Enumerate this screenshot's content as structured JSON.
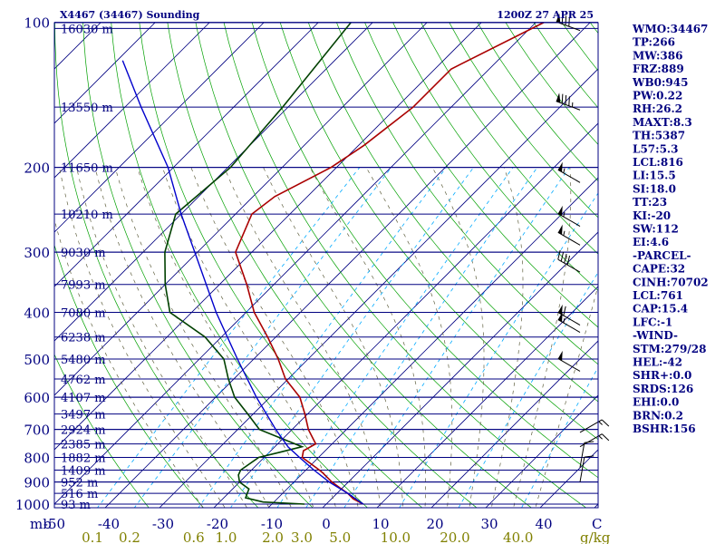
{
  "header": {
    "station": "X4467 (34467) Sounding",
    "time": "1200Z 27 APR 25"
  },
  "colors": {
    "frame": "#000080",
    "isobar": "#000080",
    "isotherm": "#000080",
    "dry_adiabat": "#00a000",
    "moist_adiabat": "#00a000",
    "mixing_ratio": "#00aaff",
    "temperature": "#aa0000",
    "dewpoint": "#004000",
    "parcel": "#0000cc",
    "wind": "#000000",
    "sidebar_text": "#000080",
    "axis_text": "#000080",
    "mixing_text": "#808000"
  },
  "indices": [
    "WMO:34467",
    "TP:266",
    "MW:386",
    "FRZ:889",
    "WB0:945",
    "PW:0.22",
    "RH:26.2",
    "MAXT:8.3",
    "TH:5387",
    "L57:5.3",
    "LCL:816",
    "LI:15.5",
    "SI:18.0",
    "TT:23",
    "KI:-20",
    "SW:112",
    "EI:4.6",
    "-PARCEL-",
    "CAPE:32",
    "CINH:70702",
    "LCL:761",
    "CAP:15.4",
    "LFC:-1",
    "-WIND-",
    "STM:279/28",
    "HEL:-42",
    "SHR+:0.0",
    "SRDS:126",
    "EHI:0.0",
    "BRN:0.2",
    "BSHR:156"
  ],
  "chart_data": {
    "type": "line",
    "diagram": "skew-T log-P",
    "pressure_ticks": [
      100,
      200,
      300,
      400,
      500,
      600,
      700,
      800,
      900,
      1000
    ],
    "pressure_tick_labels": [
      "100",
      "200",
      "300",
      "400",
      "500",
      "600",
      "700",
      "800",
      "900",
      "1000"
    ],
    "pressure_axis_unit": "mb",
    "temperature_ticks": [
      -50,
      -40,
      -30,
      -20,
      -10,
      0,
      10,
      20,
      30,
      40
    ],
    "temperature_tick_labels": [
      "-50",
      "-40",
      "-30",
      "-20",
      "-10",
      "0",
      "10",
      "20",
      "30",
      "40"
    ],
    "temperature_axis_unit": "C",
    "mixing_ratio_ticks": [
      0.1,
      0.2,
      0.6,
      1.0,
      2.0,
      3.0,
      5.0,
      10.0,
      20.0,
      40.0
    ],
    "mixing_ratio_labels": [
      "0.1",
      "0.2",
      "0.6",
      "1.0",
      "2.0",
      "3.0",
      "5.0",
      "10.0",
      "20.0",
      "40.0"
    ],
    "mixing_ratio_unit": "g/kg",
    "height_levels": [
      {
        "p": 103,
        "h": "16030 m"
      },
      {
        "p": 150,
        "h": "13550 m"
      },
      {
        "p": 200,
        "h": "11650 m"
      },
      {
        "p": 250,
        "h": "10210 m"
      },
      {
        "p": 300,
        "h": "9030 m"
      },
      {
        "p": 350,
        "h": "7993 m"
      },
      {
        "p": 400,
        "h": "7080 m"
      },
      {
        "p": 450,
        "h": "6238 m"
      },
      {
        "p": 500,
        "h": "5480 m"
      },
      {
        "p": 550,
        "h": "4762 m"
      },
      {
        "p": 600,
        "h": "4107 m"
      },
      {
        "p": 650,
        "h": "3497 m"
      },
      {
        "p": 700,
        "h": "2924 m"
      },
      {
        "p": 750,
        "h": "2385 m"
      },
      {
        "p": 800,
        "h": "1882 m"
      },
      {
        "p": 850,
        "h": "1409 m"
      },
      {
        "p": 900,
        "h": "952 m"
      },
      {
        "p": 950,
        "h": "516 m"
      },
      {
        "p": 1000,
        "h": "93 m"
      }
    ],
    "series": [
      {
        "key": "temperature",
        "p": [
          1000,
          975,
          950,
          925,
          900,
          860,
          850,
          800,
          775,
          750,
          700,
          650,
          600,
          550,
          500,
          450,
          400,
          350,
          300,
          250,
          230,
          200,
          180,
          150,
          125,
          100
        ],
        "t": [
          6.8,
          4.0,
          2.0,
          -0.5,
          -3.0,
          -6.5,
          -7.5,
          -13.0,
          -14.0,
          -13.0,
          -17.0,
          -20.5,
          -24.5,
          -30.5,
          -35.5,
          -41.5,
          -48.5,
          -55.0,
          -63.0,
          -67.0,
          -66.0,
          -61.0,
          -59.0,
          -57.0,
          -57.0,
          -48.5
        ]
      },
      {
        "key": "dewpoint",
        "p": [
          1000,
          990,
          970,
          930,
          900,
          870,
          850,
          800,
          780,
          760,
          700,
          650,
          600,
          550,
          500,
          450,
          400,
          350,
          300,
          250,
          200,
          150,
          100
        ],
        "t": [
          -4.0,
          -12.0,
          -16.0,
          -17.0,
          -20.0,
          -21.5,
          -22.0,
          -21.0,
          -18.0,
          -15.0,
          -26.0,
          -31.0,
          -36.5,
          -41.0,
          -45.5,
          -53.0,
          -64.0,
          -70.0,
          -76.0,
          -81.0,
          -79.5,
          -81.0,
          -84.0
        ]
      },
      {
        "key": "parcel",
        "p": [
          1000,
          950,
          900,
          850,
          800,
          761,
          700,
          600,
          500,
          400,
          300,
          250,
          200,
          150,
          120
        ],
        "t": [
          6.8,
          2.0,
          -3.5,
          -8.5,
          -13.5,
          -17.5,
          -23.0,
          -32.5,
          -43.0,
          -55.5,
          -70.5,
          -80.0,
          -91.0,
          -107.0,
          -119.0
        ]
      }
    ],
    "wind_barbs": [
      {
        "p": 104,
        "dir": 290,
        "speed_kt": 80
      },
      {
        "p": 152,
        "dir": 290,
        "speed_kt": 85
      },
      {
        "p": 215,
        "dir": 300,
        "speed_kt": 55
      },
      {
        "p": 265,
        "dir": 300,
        "speed_kt": 55
      },
      {
        "p": 290,
        "dir": 300,
        "speed_kt": 55
      },
      {
        "p": 330,
        "dir": 300,
        "speed_kt": 40
      },
      {
        "p": 425,
        "dir": 300,
        "speed_kt": 60
      },
      {
        "p": 440,
        "dir": 300,
        "speed_kt": 55
      },
      {
        "p": 530,
        "dir": 300,
        "speed_kt": 50
      },
      {
        "p": 710,
        "dir": 60,
        "speed_kt": 15
      },
      {
        "p": 760,
        "dir": 60,
        "speed_kt": 15
      },
      {
        "p": 840,
        "dir": 10,
        "speed_kt": 10
      },
      {
        "p": 900,
        "dir": 10,
        "speed_kt": 10
      }
    ]
  }
}
